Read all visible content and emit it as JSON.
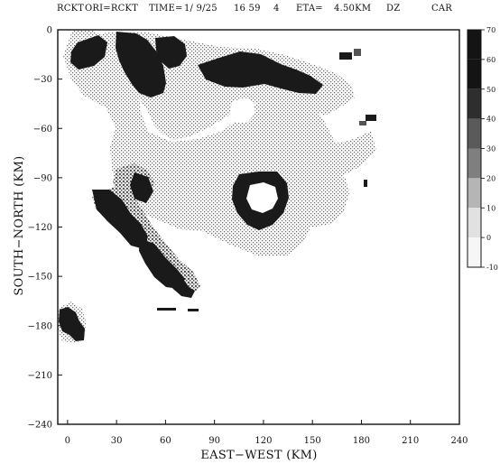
{
  "header": {
    "segments": [
      "RCKT",
      "ORI=RCKT",
      "TIME=",
      "1/ 9/25",
      "16 59",
      "4",
      "ETA=",
      "4.50KM",
      "DZ",
      "CAR"
    ]
  },
  "legend": {
    "labels": [
      "70",
      "60",
      "50",
      "40",
      "30",
      "20",
      "10",
      "0",
      "-10"
    ],
    "colors": [
      "#141414",
      "#141414",
      "#2e2e2e",
      "#5a5a5a",
      "#7f7f7f",
      "#b5b5b5",
      "#e1e1e1",
      "#f6f6f6",
      "#ffffff"
    ]
  },
  "colors": {
    "background": "#ffffff",
    "ink": "#111111",
    "strong_echo": "#1a1a1a",
    "light_echo": "#7d7d7d"
  },
  "chart_data": {
    "type": "heatmap",
    "title": "",
    "xlabel": "EAST−WEST (KM)",
    "ylabel": "SOUTH−NORTH (KM)",
    "xlim": [
      -6,
      240
    ],
    "ylim": [
      -240,
      0
    ],
    "x_ticks": [
      "0",
      "30",
      "60",
      "90",
      "120",
      "150",
      "180",
      "210",
      "240"
    ],
    "y_ticks": [
      "0",
      "−30",
      "−60",
      "−90",
      "−120",
      "−150",
      "−180",
      "−210",
      "−240"
    ],
    "x_tick_values": [
      0,
      30,
      60,
      90,
      120,
      150,
      180,
      210,
      240
    ],
    "y_tick_values": [
      0,
      -30,
      -60,
      -90,
      -120,
      -150,
      -180,
      -210,
      -240
    ],
    "variable": "DZ",
    "colorbar_range": [
      -10,
      70
    ],
    "grid": false
  }
}
